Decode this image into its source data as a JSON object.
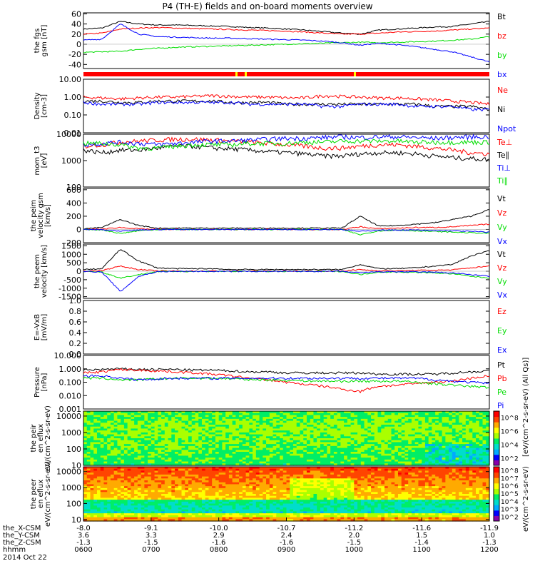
{
  "title": "P4 (TH-E) fields and on-board moments overview",
  "date_label": "2014 Oct 22",
  "colors": {
    "black": "#000000",
    "red": "#ff0000",
    "green": "#00dd00",
    "blue": "#0000ff",
    "yellow": "#ffff00",
    "orange": "#ff8800",
    "cyan": "#00cccc"
  },
  "chart_data": [
    {
      "type": "line",
      "ylabel": "the fgs gsm [nT]",
      "ylim": [
        -48,
        62
      ],
      "ticks": [
        "60",
        "40",
        "20",
        "0",
        "-20",
        "-40"
      ],
      "tick_values": [
        60,
        40,
        20,
        0,
        -20,
        -40
      ],
      "series": [
        {
          "name": "Bt",
          "color": "black",
          "values": [
            30,
            32,
            45,
            40,
            38,
            38,
            37,
            36,
            35,
            33,
            32,
            30,
            28,
            25,
            22,
            20,
            28,
            30,
            32,
            34,
            35,
            40,
            45
          ]
        },
        {
          "name": "bz",
          "color": "red",
          "values": [
            20,
            22,
            30,
            32,
            33,
            32,
            31,
            30,
            29,
            28,
            27,
            26,
            24,
            22,
            20,
            20,
            22,
            24,
            25,
            26,
            28,
            30,
            32
          ]
        },
        {
          "name": "by",
          "color": "green",
          "values": [
            -16,
            -15,
            -14,
            -10,
            -8,
            -6,
            -5,
            -4,
            -3,
            -2,
            -1,
            0,
            1,
            2,
            3,
            4,
            3,
            4,
            5,
            6,
            8,
            10,
            15
          ]
        },
        {
          "name": "bx",
          "color": "blue",
          "values": [
            8,
            10,
            40,
            20,
            15,
            14,
            13,
            12,
            12,
            11,
            10,
            9,
            8,
            6,
            3,
            -2,
            2,
            -1,
            -5,
            -10,
            -15,
            -25,
            -35
          ]
        }
      ]
    },
    {
      "type": "line",
      "ylabel": "Density [cm-3]",
      "ylim_log": [
        0.01,
        10
      ],
      "ticks": [
        "10.00",
        "1.00",
        "0.10",
        "0.01"
      ],
      "tick_values": [
        10,
        1,
        0.1,
        0.01
      ],
      "series": [
        {
          "name": "Ne",
          "color": "red",
          "values": [
            1.0,
            0.9,
            0.8,
            0.9,
            1.0,
            1.0,
            1.1,
            1.2,
            1.1,
            1.0,
            1.0,
            0.9,
            0.9,
            1.2,
            1.1,
            1.0,
            0.9,
            0.9,
            0.8,
            0.7,
            0.6,
            0.5,
            0.4
          ]
        },
        {
          "name": "Ni",
          "color": "black",
          "values": [
            0.6,
            0.6,
            0.5,
            0.5,
            0.6,
            0.6,
            0.6,
            0.6,
            0.5,
            0.5,
            0.5,
            0.4,
            0.4,
            0.4,
            0.4,
            0.4,
            0.4,
            0.4,
            0.4,
            0.3,
            0.3,
            0.3,
            0.2
          ]
        },
        {
          "name": "Npot",
          "color": "blue",
          "values": [
            0.5,
            0.4,
            0.4,
            0.4,
            0.5,
            0.5,
            0.5,
            0.5,
            0.5,
            0.4,
            0.4,
            0.4,
            0.4,
            0.3,
            0.3,
            0.4,
            0.4,
            0.4,
            0.3,
            0.3,
            0.3,
            0.2,
            0.2
          ]
        }
      ]
    },
    {
      "type": "line",
      "ylabel": "mom_t3 [eV]",
      "ylim_log": [
        100,
        10000
      ],
      "ticks": [
        "10000",
        "1000",
        "100"
      ],
      "tick_values": [
        10000,
        1000,
        100
      ],
      "series": [
        {
          "name": "Te⊥",
          "color": "red",
          "values": [
            3500,
            4000,
            5000,
            5500,
            6000,
            6500,
            6500,
            6000,
            5500,
            5000,
            4500,
            4000,
            3500,
            3000,
            3000,
            3500,
            4000,
            4000,
            3500,
            3000,
            2500,
            2000,
            1800
          ]
        },
        {
          "name": "Te∥",
          "color": "black",
          "values": [
            2500,
            2000,
            2500,
            2500,
            3000,
            3500,
            3500,
            3000,
            2800,
            2500,
            2200,
            2000,
            1800,
            1500,
            1500,
            1800,
            2000,
            2000,
            1800,
            1500,
            1300,
            1200,
            1100
          ]
        },
        {
          "name": "Ti⊥",
          "color": "blue",
          "values": [
            4000,
            4500,
            5000,
            4500,
            4000,
            4500,
            5000,
            5500,
            5500,
            6000,
            6500,
            7000,
            7000,
            7500,
            8000,
            7500,
            8000,
            8000,
            7500,
            7000,
            7500,
            8000,
            8000
          ]
        },
        {
          "name": "Ti∥",
          "color": "green",
          "values": [
            4500,
            4500,
            4000,
            3000,
            3000,
            3500,
            4000,
            4000,
            4000,
            4500,
            4500,
            4500,
            5000,
            5000,
            5500,
            5500,
            5500,
            5500,
            5000,
            5000,
            5000,
            5000,
            5000
          ]
        }
      ]
    },
    {
      "type": "line",
      "ylabel": "the peim velocity gsm [km/s]",
      "ylim": [
        -200,
        620
      ],
      "ticks": [
        "600",
        "400",
        "200",
        "0",
        "-200"
      ],
      "tick_values": [
        600,
        400,
        200,
        0,
        -200
      ],
      "series": [
        {
          "name": "Vt",
          "color": "black",
          "values": [
            10,
            30,
            150,
            60,
            20,
            20,
            20,
            20,
            20,
            20,
            20,
            20,
            20,
            20,
            20,
            200,
            50,
            60,
            80,
            100,
            150,
            200,
            300
          ]
        },
        {
          "name": "Vz",
          "color": "red",
          "values": [
            0,
            5,
            30,
            10,
            0,
            0,
            0,
            0,
            0,
            0,
            0,
            0,
            0,
            0,
            0,
            40,
            10,
            20,
            30,
            30,
            40,
            60,
            80
          ]
        },
        {
          "name": "Vy",
          "color": "green",
          "values": [
            0,
            -5,
            -60,
            -20,
            0,
            0,
            0,
            0,
            0,
            0,
            0,
            0,
            0,
            0,
            0,
            -80,
            -20,
            -10,
            -20,
            -30,
            -40,
            -50,
            -60
          ]
        },
        {
          "name": "Vx",
          "color": "blue",
          "values": [
            0,
            -5,
            -30,
            -10,
            0,
            0,
            0,
            0,
            0,
            0,
            0,
            0,
            0,
            0,
            0,
            -30,
            -10,
            -10,
            -10,
            -20,
            -20,
            -30,
            -40
          ]
        }
      ]
    },
    {
      "type": "line",
      "ylabel": "the peem velocity [km/s]",
      "ylim": [
        -1600,
        1600
      ],
      "ticks": [
        "1500",
        "1000",
        "500",
        "0",
        "-500",
        "-1000",
        "-1500"
      ],
      "tick_values": [
        1500,
        1000,
        500,
        0,
        -500,
        -1000,
        -1500
      ],
      "series": [
        {
          "name": "Vt",
          "color": "black",
          "values": [
            100,
            150,
            1300,
            600,
            200,
            150,
            150,
            150,
            100,
            100,
            100,
            100,
            100,
            100,
            100,
            400,
            150,
            150,
            200,
            300,
            400,
            900,
            1200
          ]
        },
        {
          "name": "Vz",
          "color": "red",
          "values": [
            0,
            50,
            300,
            100,
            20,
            10,
            10,
            10,
            10,
            10,
            10,
            10,
            10,
            10,
            10,
            100,
            30,
            30,
            50,
            60,
            80,
            200,
            300
          ]
        },
        {
          "name": "Vy",
          "color": "green",
          "values": [
            0,
            -50,
            -400,
            -200,
            -20,
            -10,
            -10,
            -10,
            -10,
            -10,
            -10,
            -10,
            -10,
            -10,
            -10,
            -200,
            -50,
            -50,
            -60,
            -100,
            -150,
            -300,
            -400
          ]
        },
        {
          "name": "Vx",
          "color": "blue",
          "values": [
            0,
            -50,
            -1200,
            -300,
            -30,
            -10,
            -10,
            -10,
            -10,
            -10,
            -10,
            -10,
            -10,
            -10,
            -10,
            -100,
            -30,
            -30,
            -40,
            -60,
            -100,
            -200,
            -300
          ]
        }
      ]
    },
    {
      "type": "line",
      "ylabel": "E=-VxB [mV/m]",
      "ylim": [
        0,
        1
      ],
      "ticks": [
        "1.0",
        "0.8",
        "0.6",
        "0.4",
        "0.2",
        "0.0"
      ],
      "tick_values": [
        1.0,
        0.8,
        0.6,
        0.4,
        0.2,
        0.0
      ],
      "series": [
        {
          "name": "Ez",
          "color": "red",
          "values": []
        },
        {
          "name": "Ey",
          "color": "green",
          "values": []
        },
        {
          "name": "Ex",
          "color": "blue",
          "values": []
        }
      ]
    },
    {
      "type": "line",
      "ylabel": "Pressure [nPa]",
      "ylim_log": [
        0.001,
        10
      ],
      "ticks": [
        "10.000",
        "1.000",
        "0.100",
        "0.010",
        "0.001"
      ],
      "tick_values": [
        10,
        1,
        0.1,
        0.01,
        0.001
      ],
      "series": [
        {
          "name": "Pt",
          "color": "black",
          "values": [
            0.8,
            0.9,
            1.0,
            0.9,
            0.9,
            0.9,
            0.8,
            0.8,
            0.7,
            0.6,
            0.6,
            0.5,
            0.5,
            0.5,
            0.5,
            0.5,
            0.4,
            0.4,
            0.4,
            0.4,
            0.5,
            0.6,
            0.7
          ]
        },
        {
          "name": "Pb",
          "color": "red",
          "values": [
            0.5,
            0.6,
            0.9,
            0.8,
            0.7,
            0.6,
            0.5,
            0.4,
            0.3,
            0.2,
            0.15,
            0.1,
            0.07,
            0.05,
            0.03,
            0.02,
            0.05,
            0.06,
            0.08,
            0.1,
            0.12,
            0.2,
            0.3
          ]
        },
        {
          "name": "Pe",
          "color": "green",
          "values": [
            0.2,
            0.2,
            0.15,
            0.15,
            0.18,
            0.2,
            0.2,
            0.2,
            0.18,
            0.16,
            0.15,
            0.14,
            0.13,
            0.12,
            0.12,
            0.12,
            0.12,
            0.12,
            0.1,
            0.08,
            0.06,
            0.05,
            0.04
          ]
        },
        {
          "name": "Pi",
          "color": "blue",
          "values": [
            0.3,
            0.3,
            0.2,
            0.15,
            0.18,
            0.2,
            0.2,
            0.2,
            0.2,
            0.2,
            0.2,
            0.2,
            0.2,
            0.2,
            0.2,
            0.2,
            0.2,
            0.2,
            0.2,
            0.15,
            0.12,
            0.1,
            0.08
          ]
        }
      ]
    },
    {
      "type": "heatmap",
      "ylabel": "the peir en eflux eV/(cm^2-s-sr-eV)",
      "ylim_log": [
        10,
        20000
      ],
      "ticks": [
        "10000",
        "1000",
        "100",
        "10"
      ],
      "tick_values": [
        10000,
        1000,
        100,
        10
      ],
      "colorbar_label": "[eV/(cm^2-s-sr-eV) (All Qs)]",
      "colorbar_ticks": [
        "10^8",
        "10^6",
        "10^4",
        "10^2"
      ],
      "colorbar_range": [
        2,
        8
      ]
    },
    {
      "type": "heatmap",
      "ylabel": "the peer en eflux eV/(cm^2-s-sr-eV)",
      "ylim_log": [
        8,
        20000
      ],
      "ticks": [
        "10000",
        "1000",
        "100",
        "10"
      ],
      "tick_values": [
        10000,
        1000,
        100,
        10
      ],
      "colorbar_label": "eV/(cm^2-s-sr-eV)",
      "colorbar_ticks": [
        "10^8",
        "10^7",
        "10^6",
        "10^5",
        "10^4",
        "10^3",
        "10^2"
      ],
      "colorbar_range": [
        2,
        8
      ]
    }
  ],
  "x_axis": {
    "row_labels": [
      "the_X-CSM",
      "the_Y-CSM",
      "the_Z-CSM",
      "hhmm"
    ],
    "columns": [
      {
        "x": "-8.0",
        "y": "3.6",
        "z": "-1.3",
        "t": "0600"
      },
      {
        "x": "-9.1",
        "y": "3.3",
        "z": "-1.5",
        "t": "0700"
      },
      {
        "x": "-10.0",
        "y": "2.9",
        "z": "-1.6",
        "t": "0800"
      },
      {
        "x": "-10.7",
        "y": "2.4",
        "z": "-1.6",
        "t": "0900"
      },
      {
        "x": "-11.2",
        "y": "2.0",
        "z": "-1.5",
        "t": "1000"
      },
      {
        "x": "-11.6",
        "y": "1.5",
        "z": "-1.4",
        "t": "1100"
      },
      {
        "x": "-11.9",
        "y": "1.0",
        "z": "-1.3",
        "t": "1200"
      }
    ]
  }
}
